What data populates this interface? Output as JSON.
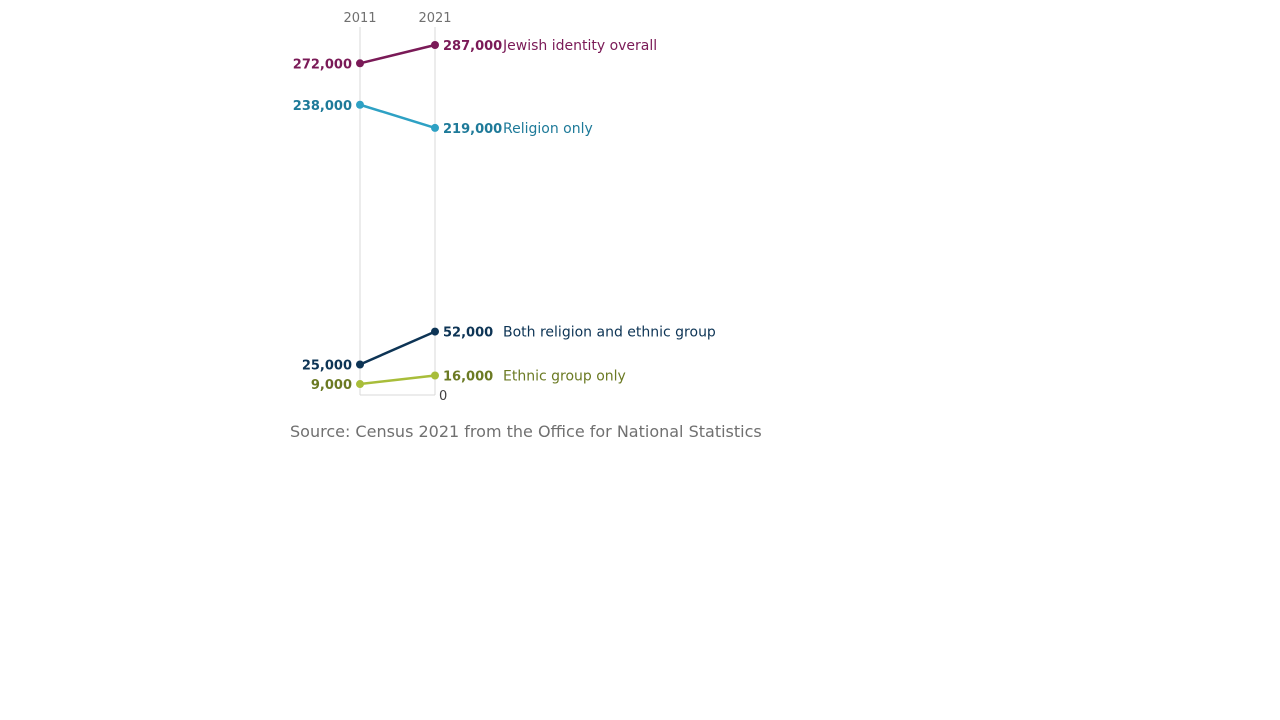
{
  "chart_data": {
    "type": "line",
    "x": [
      "2011",
      "2021"
    ],
    "zero_label": "0",
    "series": [
      {
        "name": "Jewish identity overall",
        "values": [
          272000,
          287000
        ],
        "value_labels": [
          "272,000",
          "287,000"
        ],
        "color": "#7A1A57",
        "label_color": "#7A1A57"
      },
      {
        "name": "Religion only",
        "values": [
          238000,
          219000
        ],
        "value_labels": [
          "238,000",
          "219,000"
        ],
        "color": "#2EA1C4",
        "label_color": "#1E7A99"
      },
      {
        "name": "Both religion and ethnic group",
        "values": [
          25000,
          52000
        ],
        "value_labels": [
          "25,000",
          "52,000"
        ],
        "color": "#0D3455",
        "label_color": "#0D3455"
      },
      {
        "name": "Ethnic group only",
        "values": [
          9000,
          16000
        ],
        "value_labels": [
          "9,000",
          "16,000"
        ],
        "color": "#A8BD3A",
        "label_color": "#6B7A23"
      }
    ],
    "ylim": [
      0,
      300000
    ]
  },
  "footer": {
    "source": "Source: Census 2021 from the Office for National Statistics"
  }
}
